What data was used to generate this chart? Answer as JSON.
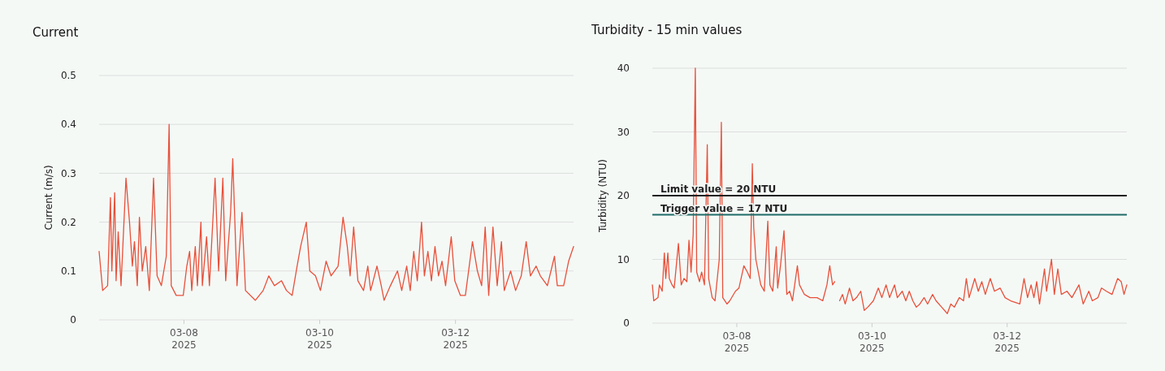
{
  "chart_data": [
    {
      "type": "line",
      "title": "Current",
      "ylabel": "Current (m/s)",
      "grid": "y",
      "xlim": [
        "2025-03-06T18:00",
        "2025-03-13T17:45"
      ],
      "ylim": [
        0,
        0.5
      ],
      "yticks": [
        0,
        0.1,
        0.2,
        0.3,
        0.4,
        0.5
      ],
      "xticks": [
        {
          "value": "2025-03-08",
          "label": "03-08\n2025"
        },
        {
          "value": "2025-03-10",
          "label": "03-10\n2025"
        },
        {
          "value": "2025-03-12",
          "label": "03-12\n2025"
        }
      ],
      "x": [
        "2025-03-06T18:00",
        "2025-03-06T19:15",
        "2025-03-06T21:00",
        "2025-03-06T22:00",
        "2025-03-06T22:30",
        "2025-03-06T23:30",
        "2025-03-07T00:00",
        "2025-03-07T00:45",
        "2025-03-07T01:45",
        "2025-03-07T03:30",
        "2025-03-07T04:45",
        "2025-03-07T05:45",
        "2025-03-07T06:30",
        "2025-03-07T07:30",
        "2025-03-07T08:15",
        "2025-03-07T09:15",
        "2025-03-07T10:30",
        "2025-03-07T11:45",
        "2025-03-07T13:15",
        "2025-03-07T14:30",
        "2025-03-07T16:00",
        "2025-03-07T17:45",
        "2025-03-07T18:45",
        "2025-03-07T19:30",
        "2025-03-07T21:15",
        "2025-03-07T23:45",
        "2025-03-08T01:00",
        "2025-03-08T02:00",
        "2025-03-08T02:45",
        "2025-03-08T04:00",
        "2025-03-08T04:45",
        "2025-03-08T06:00",
        "2025-03-08T06:30",
        "2025-03-08T08:00",
        "2025-03-08T09:00",
        "2025-03-08T11:00",
        "2025-03-08T12:15",
        "2025-03-08T13:45",
        "2025-03-08T14:45",
        "2025-03-08T16:30",
        "2025-03-08T17:15",
        "2025-03-08T18:45",
        "2025-03-08T20:30",
        "2025-03-08T21:45",
        "2025-03-09T01:15",
        "2025-03-09T04:00",
        "2025-03-09T06:00",
        "2025-03-09T08:00",
        "2025-03-09T10:30",
        "2025-03-09T12:15",
        "2025-03-09T14:15",
        "2025-03-09T16:00",
        "2025-03-09T17:15",
        "2025-03-09T19:15",
        "2025-03-09T20:30",
        "2025-03-09T22:30",
        "2025-03-10T00:15",
        "2025-03-10T02:15",
        "2025-03-10T04:00",
        "2025-03-10T06:30",
        "2025-03-10T08:15",
        "2025-03-10T09:45",
        "2025-03-10T10:45",
        "2025-03-10T12:00",
        "2025-03-10T13:30",
        "2025-03-10T15:30",
        "2025-03-10T17:00",
        "2025-03-10T18:00",
        "2025-03-10T20:15",
        "2025-03-10T21:45",
        "2025-03-10T22:45",
        "2025-03-11T01:00",
        "2025-03-11T03:30",
        "2025-03-11T05:00",
        "2025-03-11T06:45",
        "2025-03-11T08:00",
        "2025-03-11T09:15",
        "2025-03-11T10:30",
        "2025-03-11T12:00",
        "2025-03-11T13:00",
        "2025-03-11T14:15",
        "2025-03-11T15:30",
        "2025-03-11T16:45",
        "2025-03-11T18:00",
        "2025-03-11T19:15",
        "2025-03-11T20:30",
        "2025-03-11T22:30",
        "2025-03-11T23:45",
        "2025-03-12T01:45",
        "2025-03-12T03:30",
        "2025-03-12T06:00",
        "2025-03-12T07:45",
        "2025-03-12T09:15",
        "2025-03-12T10:30",
        "2025-03-12T11:45",
        "2025-03-12T13:15",
        "2025-03-12T14:45",
        "2025-03-12T16:15",
        "2025-03-12T17:15",
        "2025-03-12T19:30",
        "2025-03-12T21:15",
        "2025-03-12T23:15",
        "2025-03-13T01:00",
        "2025-03-13T02:30",
        "2025-03-13T04:30",
        "2025-03-13T06:00",
        "2025-03-13T08:30",
        "2025-03-13T11:00",
        "2025-03-13T12:00",
        "2025-03-13T14:15",
        "2025-03-13T16:00",
        "2025-03-13T17:45"
      ],
      "series": [
        {
          "color": "#e8503a",
          "values": [
            0.14,
            0.06,
            0.07,
            0.25,
            0.1,
            0.26,
            0.08,
            0.18,
            0.07,
            0.29,
            0.2,
            0.11,
            0.16,
            0.07,
            0.21,
            0.1,
            0.15,
            0.06,
            0.29,
            0.09,
            0.07,
            0.13,
            0.4,
            0.07,
            0.05,
            0.05,
            0.11,
            0.14,
            0.06,
            0.15,
            0.07,
            0.2,
            0.07,
            0.17,
            0.07,
            0.29,
            0.1,
            0.29,
            0.08,
            0.22,
            0.33,
            0.07,
            0.22,
            0.06,
            0.04,
            0.06,
            0.09,
            0.07,
            0.08,
            0.06,
            0.05,
            0.11,
            0.15,
            0.2,
            0.1,
            0.09,
            0.06,
            0.12,
            0.09,
            0.11,
            0.21,
            0.15,
            0.09,
            0.19,
            0.08,
            0.06,
            0.11,
            0.06,
            0.11,
            0.07,
            0.04,
            0.07,
            0.1,
            0.06,
            0.11,
            0.06,
            0.14,
            0.08,
            0.2,
            0.09,
            0.14,
            0.08,
            0.15,
            0.09,
            0.12,
            0.07,
            0.17,
            0.08,
            0.05,
            0.05,
            0.16,
            0.1,
            0.07,
            0.19,
            0.05,
            0.19,
            0.07,
            0.16,
            0.06,
            0.1,
            0.06,
            0.09,
            0.16,
            0.09,
            0.11,
            0.09,
            0.07,
            0.13,
            0.07,
            0.07,
            0.12,
            0.15
          ]
        }
      ]
    },
    {
      "type": "line",
      "title": "Turbidity - 15 min values",
      "ylabel": "Turbidity (NTU)",
      "grid": "y",
      "xlim": [
        "2025-03-06T18:00",
        "2025-03-13T18:30"
      ],
      "ylim": [
        0,
        40
      ],
      "yticks": [
        0,
        10,
        20,
        30,
        40
      ],
      "xticks": [
        {
          "value": "2025-03-08",
          "label": "03-08\n2025"
        },
        {
          "value": "2025-03-10",
          "label": "03-10\n2025"
        },
        {
          "value": "2025-03-12",
          "label": "03-12\n2025"
        }
      ],
      "ref_lines": [
        {
          "axis": "y",
          "value": 20,
          "label": "Limit value = 20 NTU",
          "color": "#222222"
        },
        {
          "axis": "y",
          "value": 17,
          "label": "Trigger value = 17 NTU",
          "color": "#1f6b68"
        }
      ],
      "x": [
        "2025-03-06T18:00",
        "2025-03-06T18:30",
        "2025-03-06T20:00",
        "2025-03-06T20:30",
        "2025-03-06T21:30",
        "2025-03-06T22:15",
        "2025-03-06T22:45",
        "2025-03-06T23:30",
        "2025-03-07T00:00",
        "2025-03-07T01:00",
        "2025-03-07T01:45",
        "2025-03-07T03:15",
        "2025-03-07T04:15",
        "2025-03-07T05:15",
        "2025-03-07T06:15",
        "2025-03-07T07:00",
        "2025-03-07T07:45",
        "2025-03-07T08:30",
        "2025-03-07T09:15",
        "2025-03-07T09:45",
        "2025-03-07T10:45",
        "2025-03-07T11:30",
        "2025-03-07T12:30",
        "2025-03-07T13:30",
        "2025-03-07T14:00",
        "2025-03-07T15:15",
        "2025-03-07T16:15",
        "2025-03-07T17:45",
        "2025-03-07T18:30",
        "2025-03-07T19:00",
        "2025-03-07T20:30",
        "2025-03-07T21:30",
        "2025-03-07T23:30",
        "2025-03-08T00:45",
        "2025-03-08T02:30",
        "2025-03-08T03:45",
        "2025-03-08T04:45",
        "2025-03-08T05:30",
        "2025-03-08T06:00",
        "2025-03-08T06:45",
        "2025-03-08T08:30",
        "2025-03-08T09:45",
        "2025-03-08T11:00",
        "2025-03-08T11:45",
        "2025-03-08T12:45",
        "2025-03-08T14:00",
        "2025-03-08T14:30",
        "2025-03-08T15:30",
        "2025-03-08T16:45",
        "2025-03-08T17:45",
        "2025-03-08T18:45",
        "2025-03-08T19:45",
        "2025-03-08T21:30",
        "2025-03-08T22:15",
        "2025-03-09T00:00",
        "2025-03-09T02:00",
        "2025-03-09T04:30",
        "2025-03-09T06:30",
        "2025-03-09T08:00",
        "2025-03-09T09:00",
        "2025-03-09T10:00",
        "2025-03-09T10:45",
        "2025-03-09T11:30",
        "2025-03-09T12:30",
        "2025-03-09T13:30",
        "2025-03-09T14:30",
        "2025-03-09T16:00",
        "2025-03-09T17:15",
        "2025-03-09T18:30",
        "2025-03-09T20:00",
        "2025-03-09T21:15",
        "2025-03-09T22:30",
        "2025-03-10T00:30",
        "2025-03-10T02:15",
        "2025-03-10T03:30",
        "2025-03-10T05:00",
        "2025-03-10T06:15",
        "2025-03-10T08:00",
        "2025-03-10T09:00",
        "2025-03-10T10:45",
        "2025-03-10T12:00",
        "2025-03-10T13:15",
        "2025-03-10T14:30",
        "2025-03-10T15:45",
        "2025-03-10T17:00",
        "2025-03-10T18:30",
        "2025-03-10T19:45",
        "2025-03-10T21:30",
        "2025-03-10T22:45",
        "2025-03-11T00:45",
        "2025-03-11T02:45",
        "2025-03-11T04:00",
        "2025-03-11T05:15",
        "2025-03-11T07:00",
        "2025-03-11T08:30",
        "2025-03-11T09:30",
        "2025-03-11T10:30",
        "2025-03-11T12:30",
        "2025-03-11T13:45",
        "2025-03-11T15:00",
        "2025-03-11T16:15",
        "2025-03-11T18:00",
        "2025-03-11T19:30",
        "2025-03-11T21:30",
        "2025-03-11T23:15",
        "2025-03-12T01:15",
        "2025-03-12T04:30",
        "2025-03-12T06:00",
        "2025-03-12T07:15",
        "2025-03-12T08:30",
        "2025-03-12T09:30",
        "2025-03-12T10:30",
        "2025-03-12T11:30",
        "2025-03-12T13:15",
        "2025-03-12T14:00",
        "2025-03-12T15:45",
        "2025-03-12T16:45",
        "2025-03-12T18:00",
        "2025-03-12T19:15",
        "2025-03-12T21:15",
        "2025-03-12T23:00",
        "2025-03-13T01:30",
        "2025-03-13T03:00",
        "2025-03-13T05:00",
        "2025-03-13T06:15",
        "2025-03-13T08:15",
        "2025-03-13T09:30",
        "2025-03-13T11:15",
        "2025-03-13T13:15",
        "2025-03-13T15:15",
        "2025-03-13T16:30",
        "2025-03-13T17:30",
        "2025-03-13T18:30"
      ],
      "series": [
        {
          "color": "#e8503a",
          "values": [
            6,
            3.5,
            4,
            6,
            5,
            11,
            7,
            11,
            7,
            6,
            5.5,
            12.5,
            6,
            7,
            6.5,
            13,
            8,
            14,
            40,
            8,
            6.5,
            8,
            6,
            28,
            7,
            4,
            3.5,
            10,
            31.5,
            4,
            3,
            3.5,
            5,
            5.5,
            9,
            8,
            7,
            25,
            15,
            10,
            6,
            5,
            16,
            6,
            5,
            12,
            5.5,
            9,
            14.5,
            4.5,
            5,
            3.5,
            9,
            6,
            4.5,
            4,
            4,
            3.5,
            6,
            9,
            6,
            6.5,
            null,
            3.5,
            4.5,
            3,
            5.5,
            3.5,
            4,
            5,
            2,
            2.5,
            3.5,
            5.5,
            4,
            6,
            4,
            6,
            4,
            5,
            3.5,
            5,
            3.5,
            2.5,
            3,
            4,
            3,
            4.5,
            3.5,
            2.5,
            1.5,
            3,
            2.5,
            4,
            3.5,
            7,
            4,
            7,
            5,
            6.5,
            4.5,
            7,
            5,
            5.5,
            4,
            3.5,
            3,
            7,
            4,
            6,
            4,
            6.5,
            3,
            8.5,
            5,
            10,
            4.5,
            8.5,
            4.5,
            5,
            4,
            6,
            3,
            5,
            3.5,
            4,
            5.5,
            5,
            4.5,
            7,
            6.5,
            4.5,
            6
          ]
        }
      ]
    }
  ]
}
